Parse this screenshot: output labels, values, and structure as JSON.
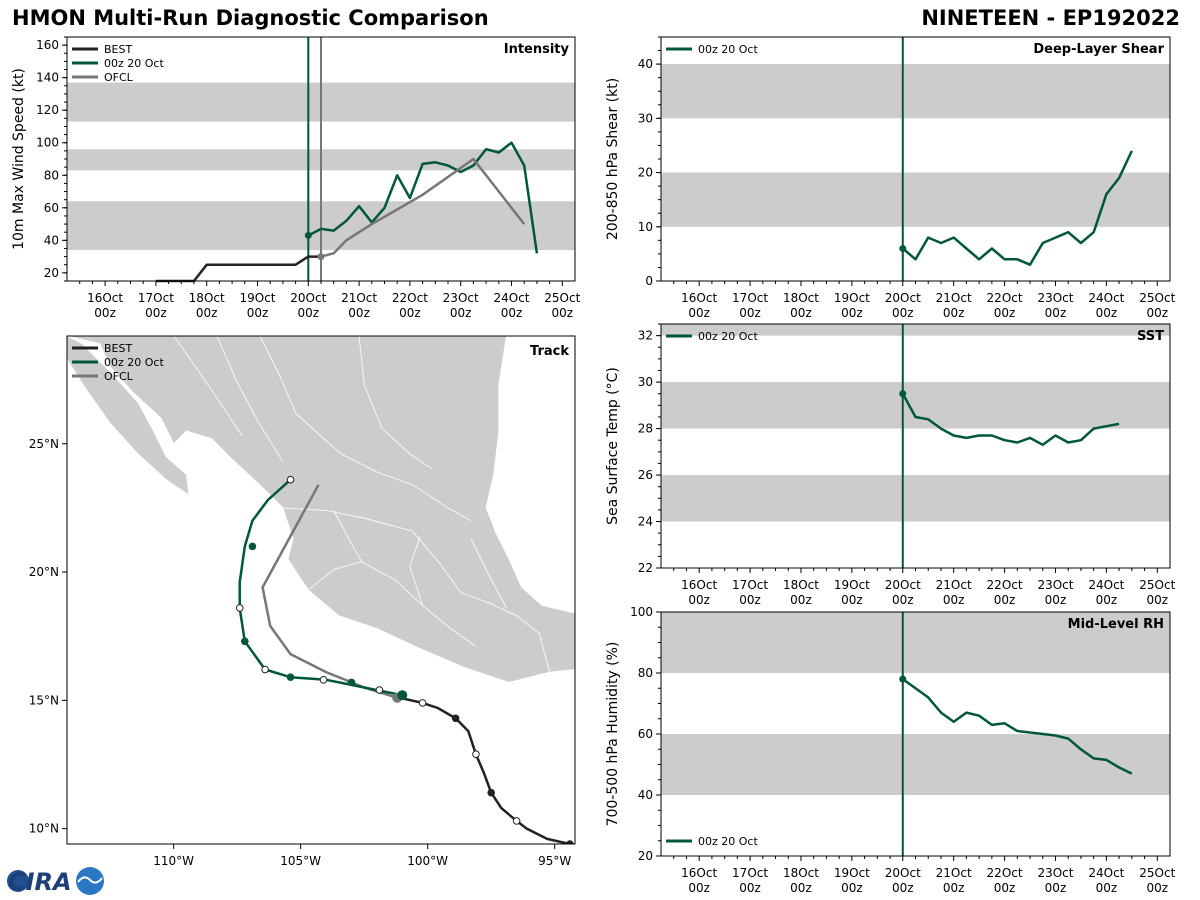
{
  "header": {
    "title": "HMON Multi-Run Diagnostic Comparison",
    "storm": "NINETEEN - EP192022"
  },
  "colors": {
    "best": "#222222",
    "run": "#00573a",
    "ofcl": "#777777",
    "band": "#cccccc",
    "land": "#cccccc",
    "border": "#ffffff"
  },
  "logo": {
    "text": "CIRA"
  },
  "time_ticks": [
    "16Oct",
    "17Oct",
    "18Oct",
    "19Oct",
    "20Oct",
    "21Oct",
    "22Oct",
    "23Oct",
    "24Oct",
    "25Oct"
  ],
  "time_tick_sub": "00z",
  "chart_data": [
    {
      "id": "intensity",
      "type": "line",
      "panel_label": "Intensity",
      "ylabel": "10m Max Wind Speed (kt)",
      "xlim": [
        -4.75,
        5.25
      ],
      "ylim": [
        15,
        165
      ],
      "yticks": [
        20,
        40,
        60,
        80,
        100,
        120,
        140,
        160
      ],
      "bands": [
        [
          34,
          64
        ],
        [
          83,
          96
        ],
        [
          113,
          137
        ]
      ],
      "init_lines": [
        {
          "x": 0,
          "series": "run"
        },
        {
          "x": 0.25,
          "series": "ofcl"
        }
      ],
      "legend": {
        "position": "top-left",
        "entries": [
          {
            "label": "BEST",
            "series": "best"
          },
          {
            "label": "00z 20 Oct",
            "series": "run"
          },
          {
            "label": "OFCL",
            "series": "ofcl"
          }
        ]
      },
      "series": [
        {
          "key": "best",
          "name": "BEST",
          "x": [
            -3,
            -2.75,
            -2.5,
            -2.25,
            -2,
            -1.75,
            -1.5,
            -1.25,
            -1,
            -0.75,
            -0.5,
            -0.25,
            0,
            0.25
          ],
          "y": [
            15,
            15,
            15,
            15,
            25,
            25,
            25,
            25,
            25,
            25,
            25,
            25,
            30,
            30
          ]
        },
        {
          "key": "run",
          "name": "00z 20 Oct",
          "marker_first": true,
          "x": [
            0,
            0.25,
            0.5,
            0.75,
            1,
            1.25,
            1.5,
            1.75,
            2,
            2.25,
            2.5,
            2.75,
            3,
            3.25,
            3.5,
            3.75,
            4,
            4.25,
            4.5
          ],
          "y": [
            43,
            47,
            46,
            52,
            61,
            51,
            60,
            80,
            66,
            87,
            88,
            86,
            82,
            86,
            96,
            94,
            100,
            86,
            32
          ]
        },
        {
          "key": "ofcl",
          "name": "OFCL",
          "marker_first": true,
          "x": [
            0.25,
            0.5,
            0.75,
            1.25,
            2.25,
            3.25,
            4.25
          ],
          "y": [
            30,
            32,
            40,
            50,
            68,
            90,
            50
          ]
        }
      ]
    },
    {
      "id": "shear",
      "type": "line",
      "panel_label": "Deep-Layer Shear",
      "ylabel": "200-850 hPa Shear (kt)",
      "xlim": [
        -4.75,
        5.25
      ],
      "ylim": [
        0,
        45
      ],
      "yticks": [
        0,
        10,
        20,
        30,
        40
      ],
      "bands": [
        [
          10,
          20
        ],
        [
          30,
          40
        ]
      ],
      "init_lines": [
        {
          "x": 0,
          "series": "run"
        }
      ],
      "legend": {
        "position": "top-left",
        "entries": [
          {
            "label": "00z 20 Oct",
            "series": "run"
          }
        ]
      },
      "series": [
        {
          "key": "run",
          "name": "00z 20 Oct",
          "marker_first": true,
          "x": [
            0,
            0.25,
            0.5,
            0.75,
            1,
            1.25,
            1.5,
            1.75,
            2,
            2.25,
            2.5,
            2.75,
            3,
            3.25,
            3.5,
            3.75,
            4,
            4.25,
            4.5
          ],
          "y": [
            6,
            4,
            8,
            7,
            8,
            6,
            4,
            6,
            4,
            4,
            3,
            7,
            8,
            9,
            7,
            9,
            16,
            19,
            24
          ]
        }
      ]
    },
    {
      "id": "sst",
      "type": "line",
      "panel_label": "SST",
      "ylabel": "Sea Surface Temp (°C)",
      "xlim": [
        -4.75,
        5.25
      ],
      "ylim": [
        22,
        32.5
      ],
      "yticks": [
        22,
        24,
        26,
        28,
        30,
        32
      ],
      "bands": [
        [
          24,
          26
        ],
        [
          28,
          30
        ],
        [
          32,
          32.5
        ]
      ],
      "init_lines": [
        {
          "x": 0,
          "series": "run"
        }
      ],
      "legend": {
        "position": "top-left",
        "entries": [
          {
            "label": "00z 20 Oct",
            "series": "run"
          }
        ]
      },
      "series": [
        {
          "key": "run",
          "name": "00z 20 Oct",
          "marker_first": true,
          "x": [
            0,
            0.25,
            0.5,
            0.75,
            1,
            1.25,
            1.5,
            1.75,
            2,
            2.25,
            2.5,
            2.75,
            3,
            3.25,
            3.5,
            3.75,
            4,
            4.25
          ],
          "y": [
            29.5,
            28.5,
            28.4,
            28.0,
            27.7,
            27.6,
            27.7,
            27.7,
            27.5,
            27.4,
            27.6,
            27.3,
            27.7,
            27.4,
            27.5,
            28.0,
            28.1,
            28.2
          ]
        }
      ]
    },
    {
      "id": "rh",
      "type": "line",
      "panel_label": "Mid-Level RH",
      "ylabel": "700-500 hPa Humidity (%)",
      "xlim": [
        -4.75,
        5.25
      ],
      "ylim": [
        20,
        100
      ],
      "yticks": [
        20,
        40,
        60,
        80,
        100
      ],
      "bands": [
        [
          40,
          60
        ],
        [
          80,
          100
        ]
      ],
      "init_lines": [
        {
          "x": 0,
          "series": "run"
        }
      ],
      "legend": {
        "position": "bottom-left",
        "entries": [
          {
            "label": "00z 20 Oct",
            "series": "run"
          }
        ]
      },
      "series": [
        {
          "key": "run",
          "name": "00z 20 Oct",
          "marker_first": true,
          "x": [
            0,
            0.25,
            0.5,
            0.75,
            1,
            1.25,
            1.5,
            1.75,
            2,
            2.25,
            2.5,
            2.75,
            3,
            3.25,
            3.5,
            3.75,
            4,
            4.25,
            4.5
          ],
          "y": [
            78,
            75,
            72,
            67,
            64,
            67,
            66,
            63,
            63.5,
            61,
            60.5,
            60,
            59.5,
            58.5,
            55,
            52,
            51.5,
            49,
            47
          ]
        }
      ]
    },
    {
      "id": "track",
      "type": "line",
      "panel_label": "Track",
      "xlim": [
        -114.2,
        -94.2
      ],
      "ylim": [
        9.4,
        29.2
      ],
      "xticks": [
        -110,
        -105,
        -100,
        -95
      ],
      "xtick_labels": [
        "110°W",
        "105°W",
        "100°W",
        "95°W"
      ],
      "yticks": [
        10,
        15,
        20,
        25
      ],
      "ytick_labels": [
        "10°N",
        "15°N",
        "20°N",
        "25°N"
      ],
      "legend": {
        "position": "top-left",
        "entries": [
          {
            "label": "BEST",
            "series": "best"
          },
          {
            "label": "00z 20 Oct",
            "series": "run"
          },
          {
            "label": "OFCL",
            "series": "ofcl"
          }
        ]
      },
      "series": [
        {
          "key": "best",
          "name": "BEST",
          "lon": [
            -94.4,
            -95.3,
            -96.1,
            -96.5,
            -97.1,
            -97.5,
            -97.8,
            -98.1,
            -98.4,
            -98.9,
            -99.6,
            -100.2,
            -101.1
          ],
          "lat": [
            9.4,
            9.6,
            10.0,
            10.3,
            10.8,
            11.4,
            12.2,
            12.9,
            13.8,
            14.3,
            14.7,
            14.9,
            15.1
          ],
          "markers": [
            {
              "lon": -94.4,
              "lat": 9.4,
              "filled": true
            },
            {
              "lon": -96.5,
              "lat": 10.3,
              "filled": false
            },
            {
              "lon": -97.5,
              "lat": 11.4,
              "filled": true
            },
            {
              "lon": -98.1,
              "lat": 12.9,
              "filled": false
            },
            {
              "lon": -98.9,
              "lat": 14.3,
              "filled": true
            },
            {
              "lon": -100.2,
              "lat": 14.9,
              "filled": false
            }
          ]
        },
        {
          "key": "run",
          "name": "00z 20 Oct",
          "lon": [
            -101.0,
            -102.0,
            -103.0,
            -104.0,
            -105.4,
            -106.4,
            -107.2,
            -107.4,
            -107.4,
            -107.2,
            -106.9,
            -106.3,
            -105.4
          ],
          "lat": [
            15.2,
            15.4,
            15.6,
            15.8,
            15.9,
            16.2,
            17.3,
            18.6,
            19.6,
            21.0,
            22.0,
            22.8,
            23.6
          ],
          "markers": [
            {
              "lon": -101.0,
              "lat": 15.2,
              "filled": true,
              "big": true
            },
            {
              "lon": -101.9,
              "lat": 15.4,
              "filled": false
            },
            {
              "lon": -103.0,
              "lat": 15.7,
              "filled": true
            },
            {
              "lon": -104.1,
              "lat": 15.8,
              "filled": false
            },
            {
              "lon": -105.4,
              "lat": 15.9,
              "filled": true
            },
            {
              "lon": -106.4,
              "lat": 16.2,
              "filled": false
            },
            {
              "lon": -107.2,
              "lat": 17.3,
              "filled": true
            },
            {
              "lon": -107.4,
              "lat": 18.6,
              "filled": false
            },
            {
              "lon": -106.9,
              "lat": 21.0,
              "filled": true
            },
            {
              "lon": -105.4,
              "lat": 23.6,
              "filled": false
            }
          ]
        },
        {
          "key": "ofcl",
          "name": "OFCL",
          "lon": [
            -101.2,
            -102.5,
            -104.0,
            -105.4,
            -106.2,
            -106.5,
            -105.4,
            -104.3
          ],
          "lat": [
            15.1,
            15.5,
            16.1,
            16.8,
            17.9,
            19.4,
            21.4,
            23.4
          ],
          "markers": [
            {
              "lon": -101.2,
              "lat": 15.1,
              "filled": true,
              "big": true
            }
          ]
        }
      ]
    }
  ],
  "map": {
    "land": [
      [
        [
          -114.2,
          29.2
        ],
        [
          -112.9,
          28.9
        ],
        [
          -112.5,
          28.0
        ],
        [
          -111.6,
          27.0
        ],
        [
          -110.5,
          26.0
        ],
        [
          -110.0,
          25.0
        ],
        [
          -109.5,
          25.5
        ],
        [
          -108.5,
          25.2
        ],
        [
          -107.7,
          24.4
        ],
        [
          -106.5,
          23.3
        ],
        [
          -105.7,
          22.5
        ],
        [
          -105.3,
          21.3
        ],
        [
          -105.5,
          20.5
        ],
        [
          -104.7,
          19.3
        ],
        [
          -103.5,
          18.3
        ],
        [
          -102.0,
          17.8
        ],
        [
          -100.5,
          17.1
        ],
        [
          -98.6,
          16.3
        ],
        [
          -96.8,
          15.7
        ],
        [
          -95.2,
          16.1
        ],
        [
          -94.2,
          16.2
        ],
        [
          -94.2,
          18.4
        ],
        [
          -95.5,
          18.7
        ],
        [
          -96.3,
          19.4
        ],
        [
          -96.8,
          20.5
        ],
        [
          -97.3,
          21.5
        ],
        [
          -97.7,
          22.5
        ],
        [
          -97.4,
          23.8
        ],
        [
          -97.2,
          25.5
        ],
        [
          -97.2,
          27.3
        ],
        [
          -96.9,
          29.2
        ]
      ],
      [
        [
          -114.2,
          28.3
        ],
        [
          -113.5,
          27.2
        ],
        [
          -112.5,
          25.8
        ],
        [
          -111.5,
          24.7
        ],
        [
          -110.3,
          23.6
        ],
        [
          -109.4,
          23.0
        ],
        [
          -109.5,
          23.8
        ],
        [
          -110.3,
          24.5
        ],
        [
          -110.8,
          25.5
        ],
        [
          -111.4,
          26.6
        ],
        [
          -112.4,
          27.7
        ],
        [
          -113.6,
          28.9
        ],
        [
          -114.2,
          29.2
        ]
      ]
    ],
    "borders": [
      [
        [
          -105.7,
          22.5
        ],
        [
          -104.0,
          22.4
        ],
        [
          -102.5,
          22.1
        ],
        [
          -100.6,
          21.6
        ],
        [
          -99.5,
          20.3
        ],
        [
          -98.7,
          19.2
        ],
        [
          -97.6,
          18.8
        ],
        [
          -96.5,
          18.3
        ],
        [
          -95.6,
          17.6
        ]
      ],
      [
        [
          -106.6,
          29.2
        ],
        [
          -105.8,
          27.6
        ],
        [
          -105.2,
          26.2
        ],
        [
          -104.1,
          25.2
        ],
        [
          -103.4,
          24.6
        ],
        [
          -102.0,
          23.9
        ],
        [
          -100.6,
          23.4
        ],
        [
          -99.2,
          22.5
        ],
        [
          -98.3,
          22.0
        ]
      ],
      [
        [
          -104.7,
          19.3
        ],
        [
          -103.7,
          20.1
        ],
        [
          -102.6,
          20.4
        ],
        [
          -101.3,
          19.7
        ],
        [
          -100.2,
          18.7
        ],
        [
          -99.1,
          17.8
        ],
        [
          -98.1,
          17.1
        ]
      ],
      [
        [
          -108.3,
          29.2
        ],
        [
          -107.5,
          27.4
        ],
        [
          -106.7,
          25.9
        ],
        [
          -105.7,
          24.3
        ]
      ],
      [
        [
          -102.7,
          29.2
        ],
        [
          -102.5,
          27.3
        ],
        [
          -101.8,
          25.6
        ],
        [
          -100.7,
          24.6
        ],
        [
          -99.8,
          24.0
        ]
      ],
      [
        [
          -103.7,
          22.4
        ],
        [
          -103.0,
          21.1
        ],
        [
          -102.6,
          20.4
        ]
      ],
      [
        [
          -100.3,
          21.4
        ],
        [
          -100.7,
          20.2
        ],
        [
          -100.2,
          18.7
        ]
      ],
      [
        [
          -98.3,
          21.3
        ],
        [
          -97.6,
          19.9
        ],
        [
          -96.9,
          18.6
        ]
      ],
      [
        [
          -110.0,
          29.2
        ],
        [
          -109.0,
          27.8
        ],
        [
          -108.1,
          26.5
        ],
        [
          -107.3,
          25.3
        ]
      ],
      [
        [
          -95.6,
          17.6
        ],
        [
          -95.2,
          16.1
        ]
      ]
    ]
  }
}
